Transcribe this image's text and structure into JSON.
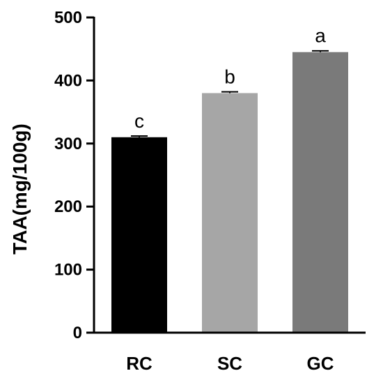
{
  "chart_data": {
    "type": "bar",
    "title": "",
    "xlabel": "",
    "ylabel": "TAA(mg/100g)",
    "ylim": [
      0,
      500
    ],
    "yticks": [
      0,
      100,
      200,
      300,
      400,
      500
    ],
    "categories": [
      "RC",
      "SC",
      "GC"
    ],
    "values": [
      310,
      380,
      445
    ],
    "errors": [
      2,
      2,
      2
    ],
    "significance_letters": [
      "c",
      "b",
      "a"
    ],
    "bar_colors": [
      "#000000",
      "#a6a6a6",
      "#7a7a7a"
    ],
    "grid": false,
    "legend": "none"
  }
}
